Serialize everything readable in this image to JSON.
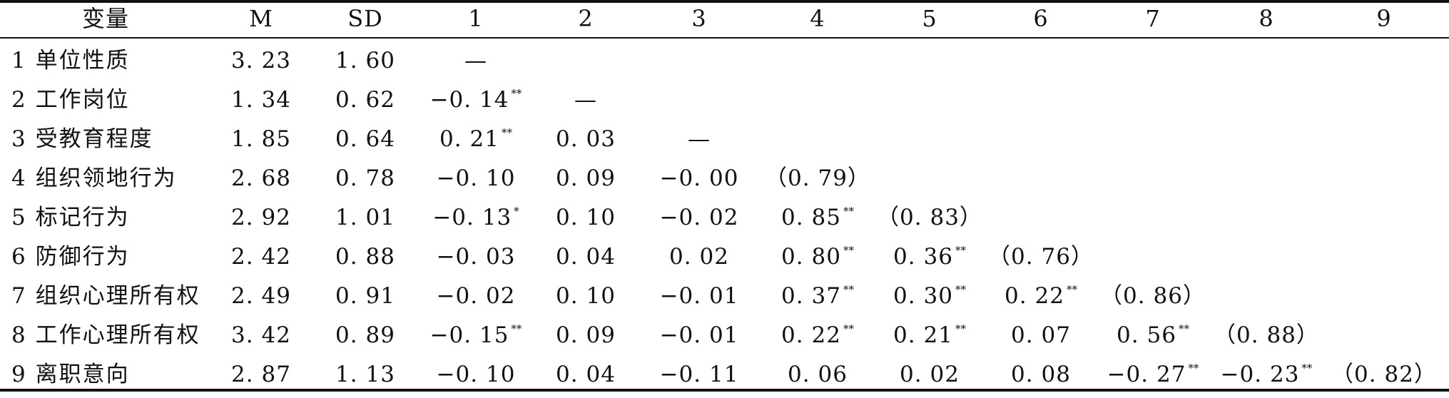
{
  "table": {
    "columns": [
      "变量",
      "M",
      "SD",
      "1",
      "2",
      "3",
      "4",
      "5",
      "6",
      "7",
      "8",
      "9"
    ],
    "rows": [
      {
        "label": "1 单位性质",
        "cells": [
          {
            "v": "3. 23"
          },
          {
            "v": "1. 60"
          },
          {
            "v": "—"
          },
          {
            "v": ""
          },
          {
            "v": ""
          },
          {
            "v": ""
          },
          {
            "v": ""
          },
          {
            "v": ""
          },
          {
            "v": ""
          },
          {
            "v": ""
          },
          {
            "v": ""
          }
        ]
      },
      {
        "label": "2 工作岗位",
        "cells": [
          {
            "v": "1. 34"
          },
          {
            "v": "0. 62"
          },
          {
            "v": "−0. 14",
            "sup": "**"
          },
          {
            "v": "—"
          },
          {
            "v": ""
          },
          {
            "v": ""
          },
          {
            "v": ""
          },
          {
            "v": ""
          },
          {
            "v": ""
          },
          {
            "v": ""
          },
          {
            "v": ""
          }
        ]
      },
      {
        "label": "3 受教育程度",
        "cells": [
          {
            "v": "1. 85"
          },
          {
            "v": "0. 64"
          },
          {
            "v": "0. 21",
            "sup": "**"
          },
          {
            "v": "0. 03"
          },
          {
            "v": "—"
          },
          {
            "v": ""
          },
          {
            "v": ""
          },
          {
            "v": ""
          },
          {
            "v": ""
          },
          {
            "v": ""
          },
          {
            "v": ""
          }
        ]
      },
      {
        "label": "4 组织领地行为",
        "cells": [
          {
            "v": "2. 68"
          },
          {
            "v": "0. 78"
          },
          {
            "v": "−0. 10"
          },
          {
            "v": "0. 09"
          },
          {
            "v": "−0. 00"
          },
          {
            "v": "（0. 79）"
          },
          {
            "v": ""
          },
          {
            "v": ""
          },
          {
            "v": ""
          },
          {
            "v": ""
          },
          {
            "v": ""
          }
        ]
      },
      {
        "label": "5 标记行为",
        "cells": [
          {
            "v": "2. 92"
          },
          {
            "v": "1. 01"
          },
          {
            "v": "−0. 13",
            "sup": "*"
          },
          {
            "v": "0. 10"
          },
          {
            "v": "−0. 02"
          },
          {
            "v": "0. 85",
            "sup": "**"
          },
          {
            "v": "（0. 83）"
          },
          {
            "v": ""
          },
          {
            "v": ""
          },
          {
            "v": ""
          },
          {
            "v": ""
          }
        ]
      },
      {
        "label": "6 防御行为",
        "cells": [
          {
            "v": "2. 42"
          },
          {
            "v": "0. 88"
          },
          {
            "v": "−0. 03"
          },
          {
            "v": "0. 04"
          },
          {
            "v": "0. 02"
          },
          {
            "v": "0. 80",
            "sup": "**"
          },
          {
            "v": "0. 36",
            "sup": "**"
          },
          {
            "v": "（0. 76）"
          },
          {
            "v": ""
          },
          {
            "v": ""
          },
          {
            "v": ""
          }
        ]
      },
      {
        "label": "7 组织心理所有权",
        "cells": [
          {
            "v": "2. 49"
          },
          {
            "v": "0. 91"
          },
          {
            "v": "−0. 02"
          },
          {
            "v": "0. 10"
          },
          {
            "v": "−0. 01"
          },
          {
            "v": "0. 37",
            "sup": "**"
          },
          {
            "v": "0. 30",
            "sup": "**"
          },
          {
            "v": "0. 22",
            "sup": "**"
          },
          {
            "v": "（0. 86）"
          },
          {
            "v": ""
          },
          {
            "v": ""
          }
        ]
      },
      {
        "label": "8 工作心理所有权",
        "cells": [
          {
            "v": "3. 42"
          },
          {
            "v": "0. 89"
          },
          {
            "v": "−0. 15",
            "sup": "**"
          },
          {
            "v": "0. 09"
          },
          {
            "v": "−0. 01"
          },
          {
            "v": "0. 22",
            "sup": "**"
          },
          {
            "v": "0. 21",
            "sup": "**"
          },
          {
            "v": "0. 07"
          },
          {
            "v": "0. 56",
            "sup": "**"
          },
          {
            "v": "（0. 88）"
          },
          {
            "v": ""
          }
        ]
      },
      {
        "label": "9 离职意向",
        "cells": [
          {
            "v": "2. 87"
          },
          {
            "v": "1. 13"
          },
          {
            "v": "−0. 10"
          },
          {
            "v": "0. 04"
          },
          {
            "v": "−0. 11"
          },
          {
            "v": "0. 06"
          },
          {
            "v": "0. 02"
          },
          {
            "v": "0. 08"
          },
          {
            "v": "−0. 27",
            "sup": "**"
          },
          {
            "v": "−0. 23",
            "sup": "**"
          },
          {
            "v": "（0. 82）"
          }
        ]
      }
    ]
  }
}
